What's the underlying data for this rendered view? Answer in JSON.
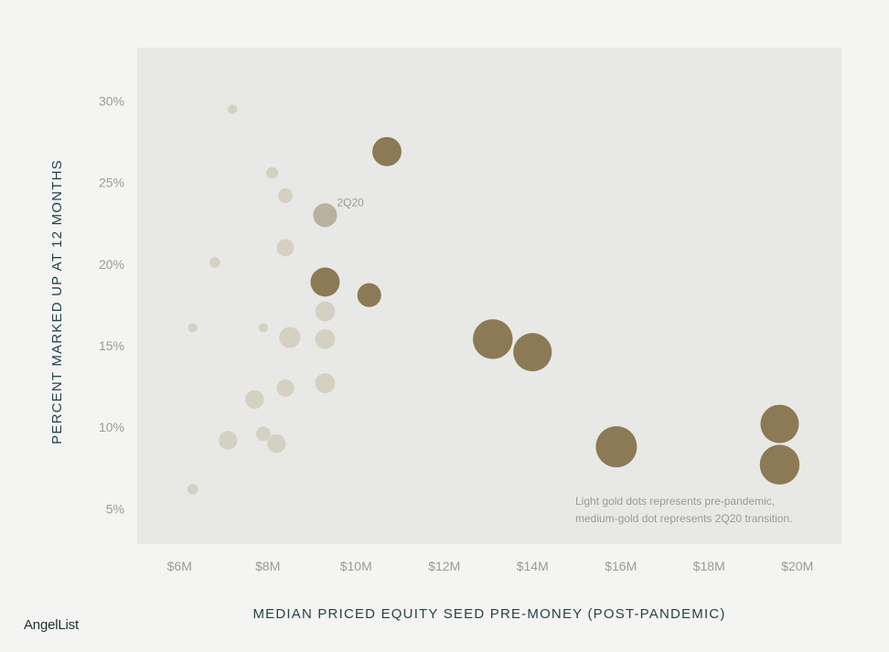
{
  "brand": "AngelList",
  "chart_data": {
    "type": "scatter",
    "xlabel": "MEDIAN PRICED EQUITY SEED PRE-MONEY (POST-PANDEMIC)",
    "ylabel": "PERCENT MARKED UP AT 12 MONTHS",
    "xlim": [
      5.0,
      21.0
    ],
    "ylim": [
      3.0,
      33.0
    ],
    "x_ticks": [
      6,
      8,
      10,
      12,
      14,
      16,
      18,
      20
    ],
    "x_tick_labels": [
      "$6M",
      "$8M",
      "$10M",
      "$12M",
      "$14M",
      "$16M",
      "$18M",
      "$20M"
    ],
    "y_ticks": [
      5,
      10,
      15,
      20,
      25,
      30
    ],
    "y_tick_labels": [
      "5%",
      "10%",
      "15%",
      "20%",
      "25%",
      "30%"
    ],
    "grid": false,
    "annotation": "2Q20",
    "note_lines": [
      "Light gold dots represents pre-pandemic,",
      "medium-gold dot represents 2Q20 transition."
    ],
    "colors": {
      "pre": "#d4d1c3",
      "transition": "#b8b0a1",
      "post": "#8b7a55",
      "panel": "#e8e8e6"
    },
    "series": [
      {
        "group": "pre",
        "points": [
          {
            "x": 7.2,
            "y": 29.5,
            "size": 3.5
          },
          {
            "x": 8.1,
            "y": 25.6,
            "size": 4.5
          },
          {
            "x": 8.4,
            "y": 24.2,
            "size": 5.5
          },
          {
            "x": 8.4,
            "y": 21.0,
            "size": 6.5
          },
          {
            "x": 6.8,
            "y": 20.1,
            "size": 4
          },
          {
            "x": 9.3,
            "y": 17.1,
            "size": 7.5
          },
          {
            "x": 6.3,
            "y": 16.1,
            "size": 3.5
          },
          {
            "x": 7.9,
            "y": 16.1,
            "size": 3.5
          },
          {
            "x": 8.5,
            "y": 15.5,
            "size": 8
          },
          {
            "x": 9.3,
            "y": 15.4,
            "size": 7.5
          },
          {
            "x": 9.3,
            "y": 12.7,
            "size": 7.5
          },
          {
            "x": 8.4,
            "y": 12.4,
            "size": 6.5
          },
          {
            "x": 7.7,
            "y": 11.7,
            "size": 7
          },
          {
            "x": 7.9,
            "y": 9.6,
            "size": 5.5
          },
          {
            "x": 7.1,
            "y": 9.2,
            "size": 7
          },
          {
            "x": 8.2,
            "y": 9.0,
            "size": 7
          },
          {
            "x": 6.3,
            "y": 6.2,
            "size": 4
          }
        ]
      },
      {
        "group": "transition",
        "points": [
          {
            "x": 9.3,
            "y": 23.0,
            "size": 9
          }
        ]
      },
      {
        "group": "post",
        "points": [
          {
            "x": 10.7,
            "y": 26.9,
            "size": 11
          },
          {
            "x": 9.3,
            "y": 18.9,
            "size": 11
          },
          {
            "x": 10.3,
            "y": 18.1,
            "size": 9
          },
          {
            "x": 13.1,
            "y": 15.4,
            "size": 15
          },
          {
            "x": 14.0,
            "y": 14.6,
            "size": 14.5
          },
          {
            "x": 15.9,
            "y": 8.8,
            "size": 15.5
          },
          {
            "x": 19.6,
            "y": 10.2,
            "size": 14.5
          },
          {
            "x": 19.6,
            "y": 7.7,
            "size": 15
          }
        ]
      }
    ]
  }
}
